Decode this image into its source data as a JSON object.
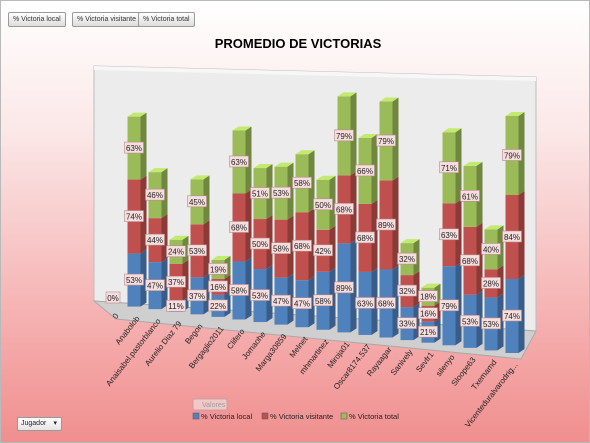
{
  "field_buttons": [
    "% Victoria local",
    "% Victoria visitante",
    "% Victoria total"
  ],
  "filter": {
    "label": "Jugador",
    "arrow": "▾"
  },
  "chart_data": {
    "type": "bar",
    "stacked": true,
    "three_d": true,
    "title": "PROMEDIO DE VICTORIAS",
    "legend_title": "Valores",
    "legend_position": "bottom",
    "categories": [
      "0",
      "Anabolob",
      "Anaisabel.pastorblanco",
      "Aurelio Diaz 79",
      "Begon",
      "Bergaglio2011",
      "Clifero",
      "Jomaohe",
      "Marga30859",
      "Melnet",
      "mhmartinez",
      "Miroja01",
      "Oscar8174.537",
      "Rayaagar",
      "Sanively",
      "Sevfr1",
      "silenyo",
      "Sloope63",
      "Txemamd",
      "Vicenteduralvarodrig..."
    ],
    "series": [
      {
        "name": "% Victoria local",
        "color": "#4f81bd",
        "values": [
          0,
          53,
          47,
          11,
          37,
          22,
          58,
          53,
          47,
          47,
          58,
          89,
          63,
          68,
          33,
          21,
          79,
          53,
          53,
          74
        ],
        "labels": [
          "0%",
          "53%",
          "47%",
          "11%",
          "37%",
          "22%",
          "58%",
          "53%",
          "47%",
          "47%",
          "58%",
          "89%",
          "63%",
          "68%",
          "33%",
          "21%",
          "79%",
          "53%",
          "53%",
          "74%"
        ]
      },
      {
        "name": "% Victoria visitante",
        "color": "#c0504d",
        "values": [
          0,
          74,
          44,
          37,
          53,
          16,
          68,
          50,
          58,
          68,
          42,
          68,
          68,
          89,
          32,
          16,
          63,
          68,
          28,
          84
        ],
        "labels": [
          "",
          "74%",
          "44%",
          "37%",
          "53%",
          "16%",
          "68%",
          "50%",
          "58%",
          "68%",
          "42%",
          "68%",
          "68%",
          "89%",
          "32%",
          "16%",
          "63%",
          "68%",
          "28%",
          "84%"
        ]
      },
      {
        "name": "% Victoria total",
        "color": "#9bbb59",
        "values": [
          0,
          63,
          46,
          24,
          45,
          19,
          63,
          51,
          53,
          58,
          50,
          79,
          66,
          79,
          32,
          18,
          71,
          61,
          40,
          79
        ],
        "labels": [
          "",
          "63%",
          "46%",
          "24%",
          "45%",
          "19%",
          "63%",
          "51%",
          "53%",
          "58%",
          "50%",
          "79%",
          "66%",
          "79%",
          "32%",
          "18%",
          "71%",
          "61%",
          "40%",
          "79%"
        ]
      }
    ]
  }
}
